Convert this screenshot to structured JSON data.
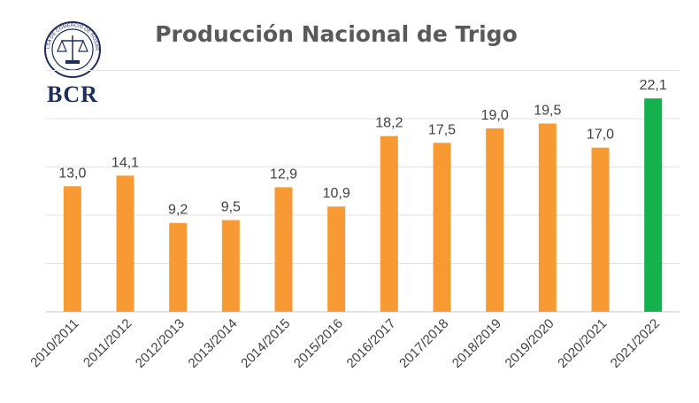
{
  "logo": {
    "text": "BCR",
    "seal_text": "BOLSA DE COMERCIO DE ROSARIO",
    "color": "#1f2d5a"
  },
  "chart_data": {
    "type": "bar",
    "title": "Producción Nacional de Trigo",
    "xlabel": "",
    "ylabel": "",
    "categories": [
      "2010/2011",
      "2011/2012",
      "2012/2013",
      "2013/2014",
      "2014/2015",
      "2015/2016",
      "2016/2017",
      "2017/2018",
      "2018/2019",
      "2019/2020",
      "2020/2021",
      "2021/2022"
    ],
    "values": [
      13.0,
      14.1,
      9.2,
      9.5,
      12.9,
      10.9,
      18.2,
      17.5,
      19.0,
      19.5,
      17.0,
      22.1
    ],
    "value_labels": [
      "13,0",
      "14,1",
      "9,2",
      "9,5",
      "12,9",
      "10,9",
      "18,2",
      "17,5",
      "19,0",
      "19,5",
      "17,0",
      "22,1"
    ],
    "ylim": [
      0,
      25
    ],
    "grid": true,
    "colors": {
      "default": "#f89a34",
      "highlight": "#16b14f",
      "highlight_index": 11,
      "grid": "#e3e3e3",
      "axis": "#d9d9d9"
    }
  }
}
